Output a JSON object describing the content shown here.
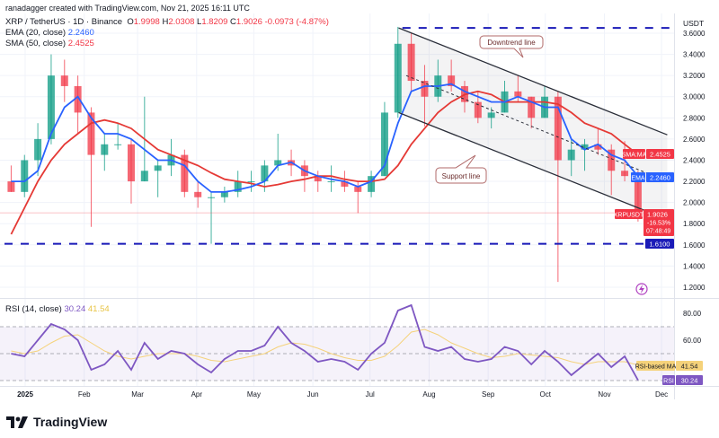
{
  "header": {
    "credit": "ranadagger created with TradingView.com, Nov 21, 2025 16:11 UTC",
    "symbol": "XRP / TetherUS · 1D · Binance",
    "o_label": "O",
    "o": "1.9998",
    "h_label": "H",
    "h": "2.0308",
    "l_label": "L",
    "l": "1.8209",
    "c_label": "C",
    "c": "1.9026",
    "change": "-0.0973 (-4.87%)",
    "ema_label": "EMA (20, close)",
    "ema_value": "2.2460",
    "sma_label": "SMA (50, close)",
    "sma_value": "2.4525",
    "rsi_label": "RSI (14, close)",
    "rsi_value": "30.24",
    "rsi_ma_value": "41.54"
  },
  "axis": {
    "currency": "USDT",
    "price_ticks": [
      "3.6000",
      "3.4000",
      "3.2000",
      "3.0000",
      "2.8000",
      "2.6000",
      "2.4000",
      "2.2000",
      "2.0000",
      "1.8000",
      "1.6000",
      "1.4000",
      "1.2000"
    ],
    "rsi_ticks": [
      "80.00",
      "60.00"
    ],
    "time_labels": [
      {
        "label": "2025",
        "date": "2025-01-01"
      },
      {
        "label": "Feb",
        "date": "2025-02-01"
      },
      {
        "label": "Mar",
        "date": "2025-03-01"
      },
      {
        "label": "Apr",
        "date": "2025-04-01"
      },
      {
        "label": "May",
        "date": "2025-05-01"
      },
      {
        "label": "Jun",
        "date": "2025-06-01"
      },
      {
        "label": "Jul",
        "date": "2025-07-01"
      },
      {
        "label": "Aug",
        "date": "2025-08-01"
      },
      {
        "label": "Sep",
        "date": "2025-09-01"
      },
      {
        "label": "Oct",
        "date": "2025-10-01"
      },
      {
        "label": "Nov",
        "date": "2025-11-01"
      },
      {
        "label": "Dec",
        "date": "2025-12-01"
      }
    ]
  },
  "badges": {
    "sma_name": "SMA:MA",
    "sma_value": "2.4525",
    "ema_name": "EMA",
    "ema_value": "2.2460",
    "symbol_name": "XRPUSDT",
    "price": "1.9026",
    "pct": "-16.53%",
    "countdown": "07:48:49",
    "level_value": "1.6100",
    "rsi_ma_name": "RSI-based MA",
    "rsi_ma_value": "41.54",
    "rsi_name": "RSI",
    "rsi_value": "30.24"
  },
  "annotations": {
    "downtrend": "Downtrend line",
    "support": "Support line"
  },
  "colors": {
    "up": "#089981",
    "down": "#f23645",
    "ema": "#2962ff",
    "sma": "#e53935",
    "rsi": "#7e57c2",
    "rsi_ma": "#f5d27a",
    "level": "#1a1ab8",
    "channel": "#2a2e39"
  },
  "brand": "TradingView",
  "chart_data": {
    "type": "candlestick",
    "interval_note": "weekly approximation of daily candles",
    "price_range": [
      1.2,
      3.6
    ],
    "rsi_range": [
      20,
      90
    ],
    "rsi_levels": [
      70,
      50,
      30
    ],
    "weeks": [
      "2024-12-23",
      "2024-12-30",
      "2025-01-06",
      "2025-01-13",
      "2025-01-20",
      "2025-01-27",
      "2025-02-03",
      "2025-02-10",
      "2025-02-17",
      "2025-02-24",
      "2025-03-03",
      "2025-03-10",
      "2025-03-17",
      "2025-03-24",
      "2025-03-31",
      "2025-04-07",
      "2025-04-14",
      "2025-04-21",
      "2025-04-28",
      "2025-05-05",
      "2025-05-12",
      "2025-05-19",
      "2025-05-26",
      "2025-06-02",
      "2025-06-09",
      "2025-06-16",
      "2025-06-23",
      "2025-06-30",
      "2025-07-07",
      "2025-07-14",
      "2025-07-21",
      "2025-07-28",
      "2025-08-04",
      "2025-08-11",
      "2025-08-18",
      "2025-08-25",
      "2025-09-01",
      "2025-09-08",
      "2025-09-15",
      "2025-09-22",
      "2025-09-29",
      "2025-10-06",
      "2025-10-13",
      "2025-10-20",
      "2025-10-27",
      "2025-11-03",
      "2025-11-10",
      "2025-11-17"
    ],
    "ohlc": [
      [
        2.2,
        2.35,
        2.1,
        2.1
      ],
      [
        2.1,
        2.45,
        2.05,
        2.4
      ],
      [
        2.4,
        2.75,
        2.25,
        2.6
      ],
      [
        2.6,
        3.4,
        2.55,
        3.2
      ],
      [
        3.2,
        3.35,
        2.95,
        3.1
      ],
      [
        3.1,
        3.2,
        2.65,
        2.85
      ],
      [
        2.85,
        2.9,
        1.77,
        2.45
      ],
      [
        2.45,
        2.65,
        2.3,
        2.55
      ],
      [
        2.55,
        2.75,
        2.5,
        2.55
      ],
      [
        2.55,
        2.6,
        1.99,
        2.2
      ],
      [
        2.2,
        3.0,
        2.2,
        2.3
      ],
      [
        2.3,
        2.4,
        2.05,
        2.35
      ],
      [
        2.35,
        2.6,
        2.25,
        2.45
      ],
      [
        2.45,
        2.5,
        2.05,
        2.1
      ],
      [
        2.1,
        2.2,
        1.95,
        2.05
      ],
      [
        2.05,
        2.1,
        1.61,
        2.05
      ],
      [
        2.05,
        2.15,
        2.0,
        2.1
      ],
      [
        2.1,
        2.3,
        2.05,
        2.2
      ],
      [
        2.2,
        2.3,
        2.1,
        2.2
      ],
      [
        2.2,
        2.4,
        2.1,
        2.35
      ],
      [
        2.35,
        2.65,
        2.3,
        2.4
      ],
      [
        2.4,
        2.5,
        2.25,
        2.35
      ],
      [
        2.35,
        2.4,
        2.1,
        2.25
      ],
      [
        2.25,
        2.3,
        2.1,
        2.2
      ],
      [
        2.2,
        2.35,
        2.1,
        2.2
      ],
      [
        2.2,
        2.3,
        2.1,
        2.15
      ],
      [
        2.15,
        2.2,
        1.9,
        2.1
      ],
      [
        2.1,
        2.3,
        2.05,
        2.25
      ],
      [
        2.25,
        2.95,
        2.25,
        2.85
      ],
      [
        2.85,
        3.66,
        2.8,
        3.5
      ],
      [
        3.5,
        3.6,
        3.05,
        3.15
      ],
      [
        3.15,
        3.3,
        2.72,
        3.0
      ],
      [
        3.0,
        3.35,
        2.95,
        3.2
      ],
      [
        3.2,
        3.35,
        3.05,
        3.1
      ],
      [
        3.1,
        3.15,
        2.85,
        2.95
      ],
      [
        2.95,
        3.05,
        2.75,
        2.8
      ],
      [
        2.8,
        2.9,
        2.7,
        2.85
      ],
      [
        2.85,
        3.15,
        2.85,
        3.05
      ],
      [
        3.05,
        3.2,
        2.95,
        3.0
      ],
      [
        3.0,
        3.0,
        2.7,
        2.8
      ],
      [
        2.8,
        3.1,
        2.8,
        3.0
      ],
      [
        3.0,
        3.05,
        1.25,
        2.4
      ],
      [
        2.4,
        2.6,
        2.25,
        2.5
      ],
      [
        2.5,
        2.6,
        2.3,
        2.55
      ],
      [
        2.55,
        2.7,
        2.45,
        2.5
      ],
      [
        2.5,
        2.55,
        2.07,
        2.3
      ],
      [
        2.3,
        2.58,
        2.2,
        2.25
      ],
      [
        2.25,
        2.3,
        1.82,
        1.9026
      ]
    ],
    "ema20": [
      2.2,
      2.2,
      2.3,
      2.65,
      2.9,
      3.0,
      2.8,
      2.65,
      2.65,
      2.6,
      2.5,
      2.4,
      2.4,
      2.35,
      2.2,
      2.1,
      2.1,
      2.12,
      2.15,
      2.2,
      2.35,
      2.38,
      2.3,
      2.25,
      2.22,
      2.2,
      2.15,
      2.2,
      2.35,
      2.75,
      3.05,
      3.1,
      3.1,
      3.12,
      3.05,
      3.0,
      2.95,
      2.95,
      3.0,
      2.95,
      2.9,
      2.9,
      2.6,
      2.5,
      2.55,
      2.45,
      2.4,
      2.246
    ],
    "sma50": [
      1.7,
      1.95,
      2.2,
      2.4,
      2.55,
      2.65,
      2.75,
      2.78,
      2.75,
      2.7,
      2.6,
      2.5,
      2.45,
      2.4,
      2.35,
      2.28,
      2.22,
      2.2,
      2.18,
      2.15,
      2.17,
      2.2,
      2.22,
      2.25,
      2.25,
      2.22,
      2.2,
      2.2,
      2.22,
      2.35,
      2.55,
      2.7,
      2.85,
      2.95,
      3.02,
      3.05,
      3.02,
      2.95,
      2.95,
      2.95,
      2.95,
      2.93,
      2.85,
      2.75,
      2.7,
      2.65,
      2.55,
      2.4525
    ],
    "rsi": [
      50,
      48,
      60,
      72,
      68,
      60,
      38,
      42,
      52,
      38,
      58,
      46,
      52,
      50,
      42,
      36,
      46,
      52,
      52,
      56,
      70,
      58,
      52,
      44,
      46,
      44,
      38,
      50,
      58,
      82,
      86,
      55,
      52,
      55,
      46,
      44,
      46,
      55,
      52,
      42,
      52,
      44,
      34,
      42,
      50,
      40,
      48,
      30.24
    ],
    "rsi_ma": [
      52,
      50,
      52,
      58,
      63,
      64,
      58,
      52,
      48,
      46,
      48,
      50,
      50,
      50,
      48,
      45,
      44,
      46,
      48,
      50,
      55,
      58,
      57,
      54,
      50,
      47,
      45,
      45,
      48,
      56,
      66,
      68,
      64,
      58,
      54,
      50,
      47,
      48,
      50,
      49,
      48,
      47,
      44,
      42,
      44,
      44,
      44,
      41.54
    ],
    "lines": {
      "resistance_level": 3.65,
      "support_level": 1.61,
      "downtrend": [
        [
          "2025-07-16",
          3.65
        ],
        [
          "2025-12-04",
          2.64
        ]
      ],
      "support": [
        [
          "2025-07-16",
          2.85
        ],
        [
          "2025-12-04",
          1.84
        ]
      ],
      "channel_mid": [
        [
          "2025-07-20",
          3.2
        ],
        [
          "2025-12-04",
          2.2
        ]
      ]
    }
  }
}
